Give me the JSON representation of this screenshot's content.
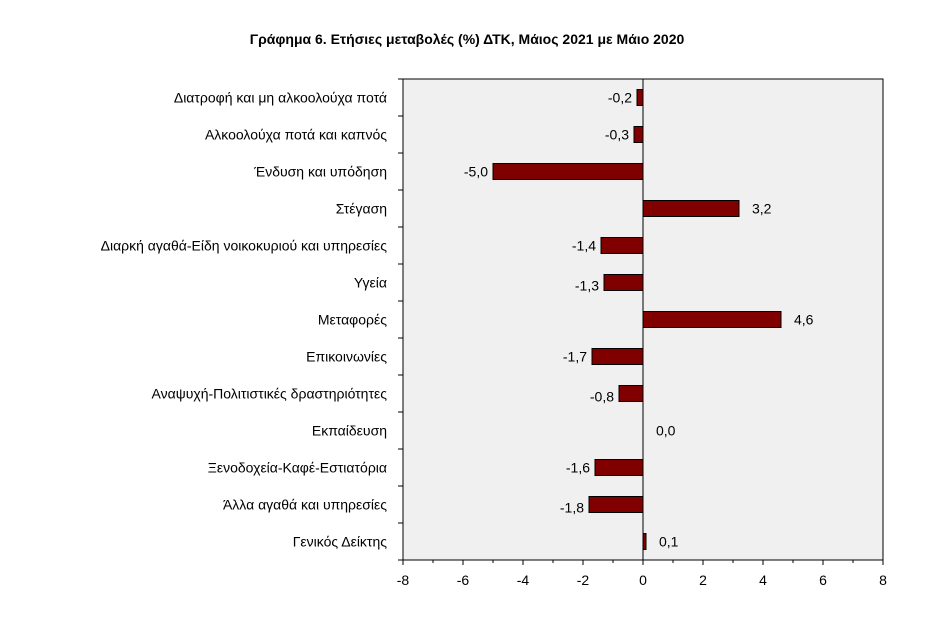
{
  "chart_data": {
    "type": "bar",
    "orientation": "horizontal",
    "title": "Γράφημα 6. Ετήσιες μεταβολές (%) ΔΤΚ, Μάιος 2021 με Μάιο 2020",
    "categories": [
      "Διατροφή και μη αλκοολούχα ποτά",
      "Αλκοολούχα ποτά και καπνός",
      "Ένδυση και υπόδηση",
      "Στέγαση",
      "Διαρκή αγαθά-Είδη νοικοκυριού και υπηρεσίες",
      "Υγεία",
      "Μεταφορές",
      "Επικοινωνίες",
      "Αναψυχή-Πολιτιστικές δραστηριότητες",
      "Εκπαίδευση",
      "Ξενοδοχεία-Καφέ-Εστιατόρια",
      "Άλλα αγαθά και υπηρεσίες",
      "Γενικός Δείκτης"
    ],
    "values": [
      -0.2,
      -0.3,
      -5.0,
      3.2,
      -1.4,
      -1.3,
      4.6,
      -1.7,
      -0.8,
      0.0,
      -1.6,
      -1.8,
      0.1
    ],
    "value_labels": [
      "-0,2",
      "-0,3",
      "-5,0",
      "3,2",
      "-1,4",
      "-1,3",
      "4,6",
      "-1,7",
      "-0,8",
      "0,0",
      "-1,6",
      "-1,8",
      "0,1"
    ],
    "xlim": [
      -8,
      8
    ],
    "x_ticks": [
      -8,
      -6,
      -4,
      -2,
      0,
      2,
      4,
      6,
      8
    ],
    "x_tick_labels": [
      "-8",
      "-6",
      "-4",
      "-2",
      "0",
      "2",
      "4",
      "6",
      "8"
    ],
    "bar_color": "#800000",
    "bar_edge_color": "#000000",
    "plot_background": "#f0f0f0",
    "grid": false,
    "legend": false
  }
}
